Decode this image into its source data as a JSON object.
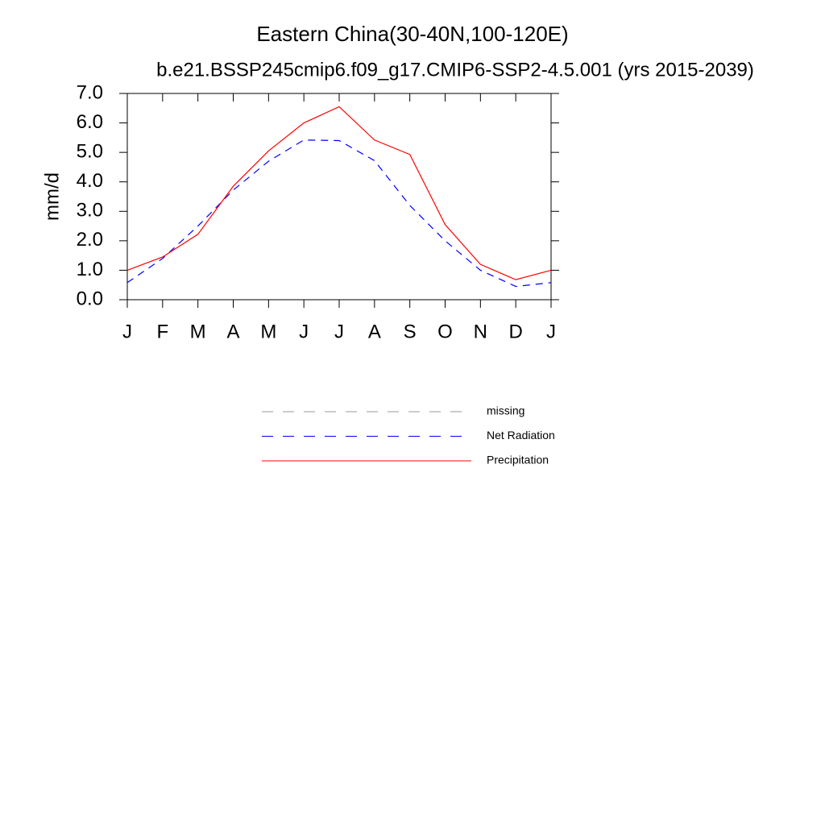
{
  "chart_data": {
    "type": "line",
    "title": "Eastern China(30-40N,100-120E)",
    "subtitle": "b.e21.BSSP245cmip6.f09_g17.CMIP6-SSP2-4.5.001 (yrs 2015-2039)",
    "y_label": "mm/d",
    "categories": [
      "J",
      "F",
      "M",
      "A",
      "M",
      "J",
      "J",
      "A",
      "S",
      "O",
      "N",
      "D",
      "J"
    ],
    "series": [
      {
        "name": "missing",
        "color": "#999999",
        "dash": true,
        "values": [
          null,
          null,
          null,
          null,
          null,
          null,
          null,
          null,
          null,
          null,
          null,
          null,
          null
        ]
      },
      {
        "name": "Net Radiation",
        "color": "#0000ff",
        "dash": true,
        "values": [
          0.58,
          1.4,
          2.5,
          3.72,
          4.7,
          5.42,
          5.4,
          4.72,
          3.2,
          2.0,
          1.0,
          0.45,
          0.58
        ]
      },
      {
        "name": "Precipitation",
        "color": "#ff0000",
        "dash": false,
        "values": [
          1.0,
          1.45,
          2.22,
          3.85,
          5.05,
          6.0,
          6.55,
          5.42,
          4.93,
          2.55,
          1.2,
          0.68,
          1.0
        ]
      }
    ],
    "ylim": [
      0,
      7
    ],
    "yticks": [
      {
        "value": 0,
        "label": "0.0"
      },
      {
        "value": 1,
        "label": "1.0"
      },
      {
        "value": 2,
        "label": "2.0"
      },
      {
        "value": 3,
        "label": "3.0"
      },
      {
        "value": 4,
        "label": "4.0"
      },
      {
        "value": 5,
        "label": "5.0"
      },
      {
        "value": 6,
        "label": "6.0"
      },
      {
        "value": 7,
        "label": "7.0"
      }
    ]
  }
}
